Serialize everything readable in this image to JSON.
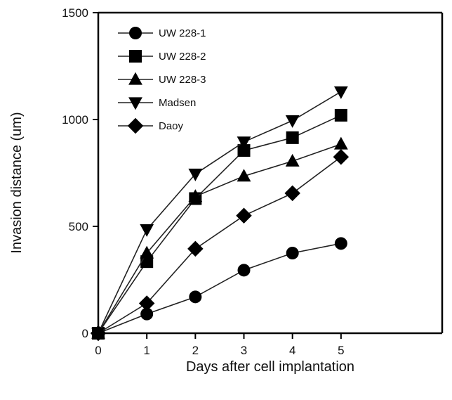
{
  "chart_data": {
    "type": "line",
    "title": "",
    "xlabel": "Days after cell implantation",
    "ylabel": "Invasion distance (um)",
    "x": [
      0,
      1,
      2,
      3,
      4,
      5
    ],
    "xlim": [
      0,
      6
    ],
    "ylim": [
      0,
      1500
    ],
    "xticks": [
      "0",
      "1",
      "2",
      "3",
      "4",
      "5"
    ],
    "yticks": [
      "0",
      "500",
      "1000",
      "1500"
    ],
    "grid": false,
    "legend_position": "top-left",
    "series": [
      {
        "name": "UW 228-1",
        "marker": "circle",
        "values": [
          0,
          90,
          170,
          295,
          375,
          420
        ]
      },
      {
        "name": "UW 228-2",
        "marker": "square",
        "values": [
          0,
          335,
          630,
          855,
          915,
          1020
        ]
      },
      {
        "name": "UW 228-3",
        "marker": "triangle-up",
        "values": [
          0,
          375,
          640,
          735,
          805,
          885
        ]
      },
      {
        "name": "Madsen",
        "marker": "triangle-down",
        "values": [
          0,
          485,
          745,
          895,
          995,
          1130
        ]
      },
      {
        "name": "Daoy",
        "marker": "diamond",
        "values": [
          0,
          140,
          395,
          550,
          655,
          825
        ]
      }
    ]
  }
}
